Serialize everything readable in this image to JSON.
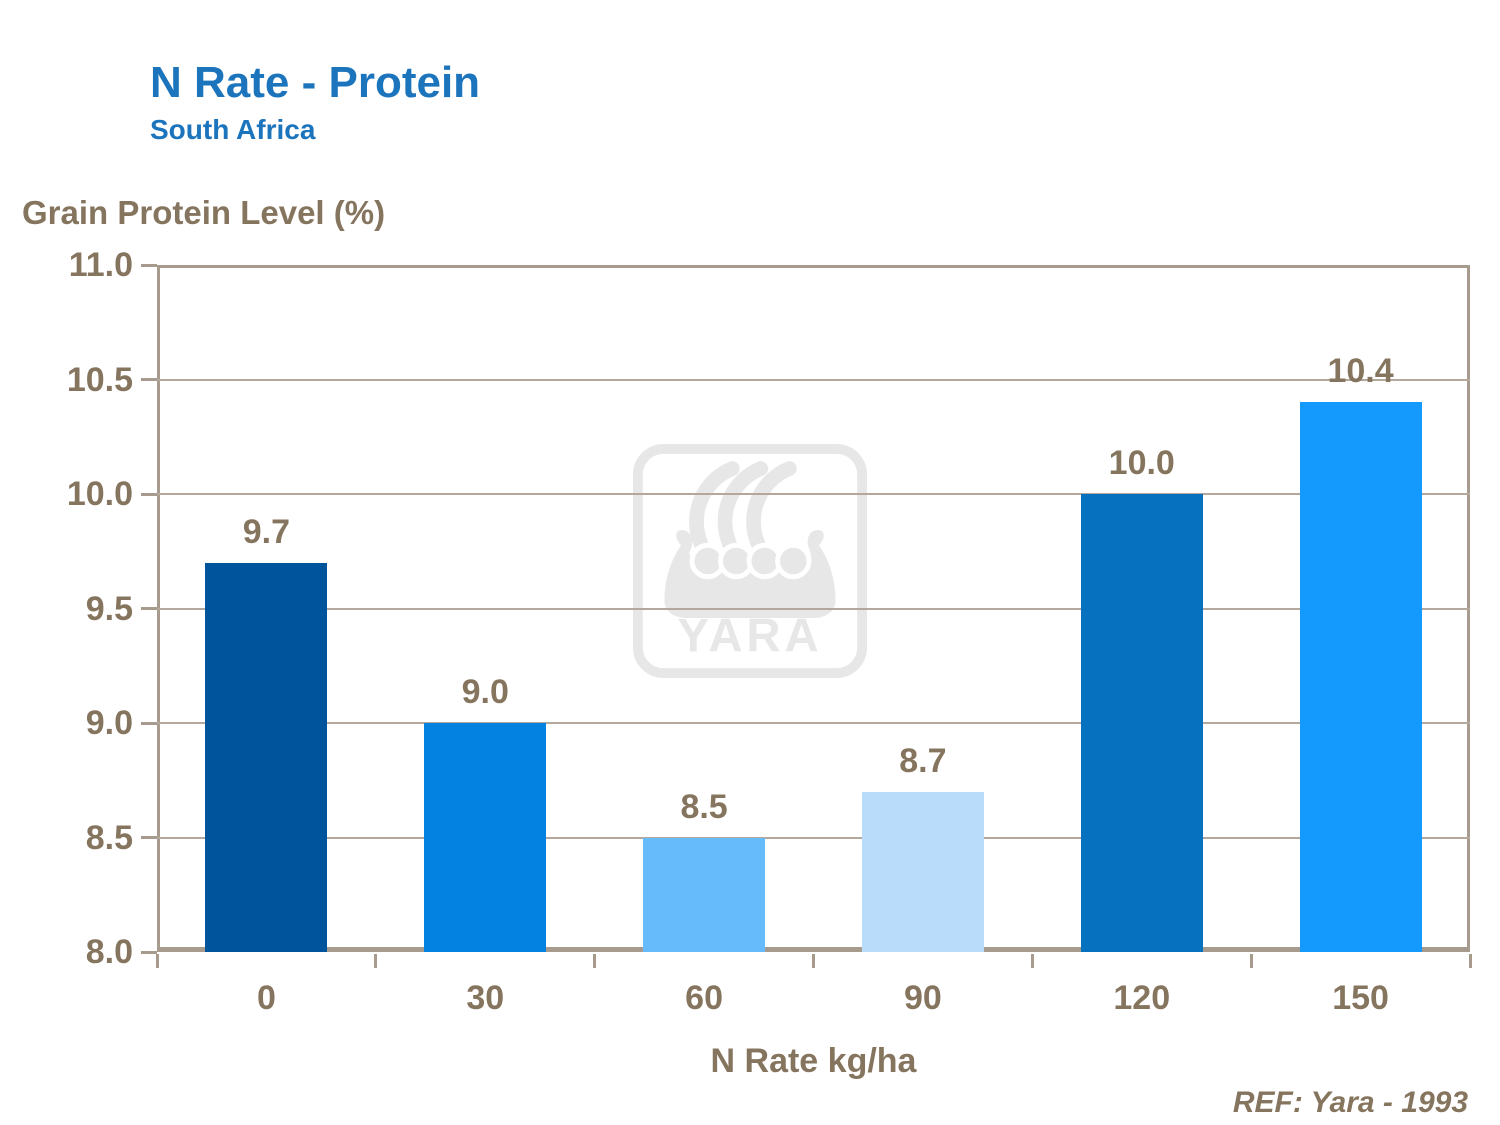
{
  "header": {
    "title": "N Rate - Protein",
    "subtitle": "South Africa"
  },
  "ref_note": "REF: Yara - 1993",
  "watermark": {
    "text": "YARA"
  },
  "colors": {
    "title_blue": "#1B74BC",
    "axis_text": "#86755E",
    "plot_border": "#A79B8E",
    "gridline": "#B3A89B",
    "watermark_gray": "#E7E7E7"
  },
  "chart_data": {
    "type": "bar",
    "categories": [
      "0",
      "30",
      "60",
      "90",
      "120",
      "150"
    ],
    "values": [
      9.7,
      9.0,
      8.5,
      8.7,
      10.0,
      10.4
    ],
    "data_labels": [
      "9.7",
      "9.0",
      "8.5",
      "8.7",
      "10.0",
      "10.4"
    ],
    "bar_colors": [
      "#00549B",
      "#0382E2",
      "#66BBFA",
      "#B8DCFA",
      "#0571BF",
      "#149AFC"
    ],
    "title": "N Rate - Protein",
    "subtitle": "South Africa",
    "xlabel": "N Rate kg/ha",
    "ylabel": "Grain Protein Level (%)",
    "ylim": [
      8.0,
      11.0
    ],
    "ytick_step": 0.5,
    "yticks": [
      "8.0",
      "8.5",
      "9.0",
      "9.5",
      "10.0",
      "10.5",
      "11.0"
    ],
    "grid": true,
    "legend": "none"
  }
}
